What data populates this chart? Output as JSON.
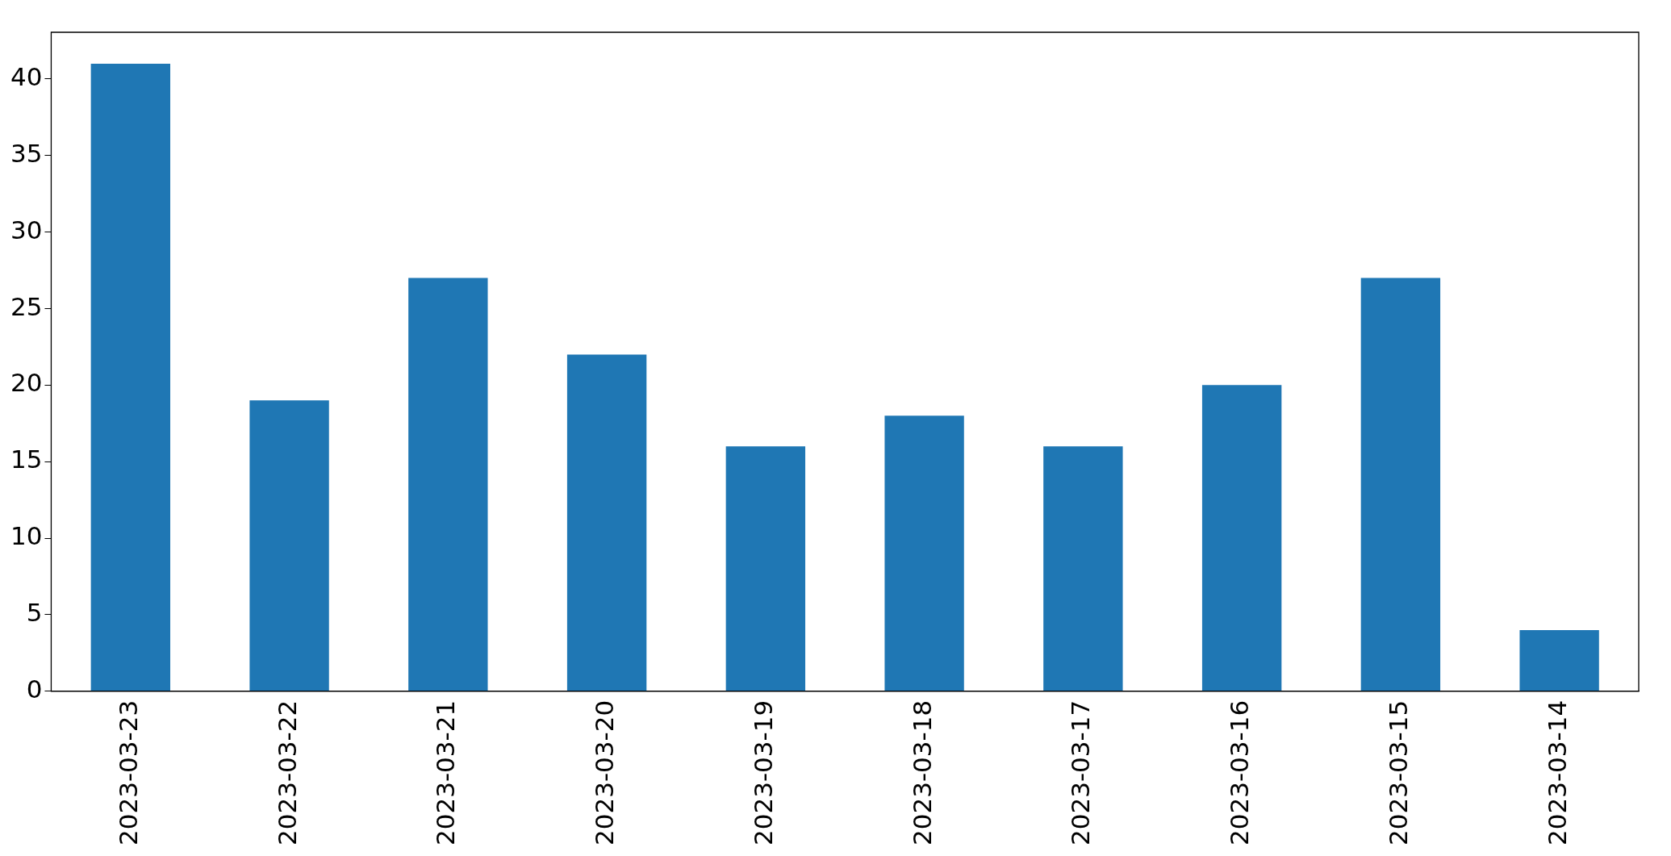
{
  "chart_data": {
    "type": "bar",
    "categories": [
      "2023-03-23",
      "2023-03-22",
      "2023-03-21",
      "2023-03-20",
      "2023-03-19",
      "2023-03-18",
      "2023-03-17",
      "2023-03-16",
      "2023-03-15",
      "2023-03-14"
    ],
    "values": [
      41,
      19,
      27,
      22,
      16,
      18,
      16,
      20,
      27,
      4
    ],
    "color": "#1f77b4",
    "ylim": [
      0,
      43.05
    ],
    "yticks": [
      0,
      5,
      10,
      15,
      20,
      25,
      30,
      35,
      40
    ],
    "grid": false,
    "legend": false
  }
}
